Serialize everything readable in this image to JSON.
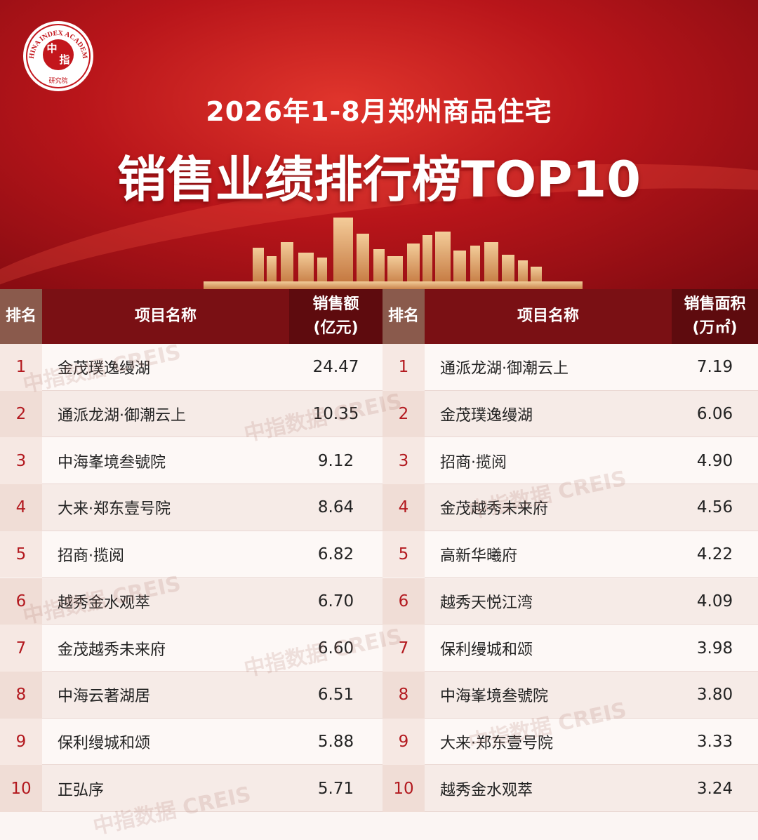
{
  "logo": {
    "ring_text": "CHINA INDEX ACADEMY",
    "mark_top": "中",
    "mark_bottom": "指",
    "sub": "研究院"
  },
  "header": {
    "subtitle": "2026年1-8月郑州商品住宅",
    "title": "销售业绩排行榜TOP10"
  },
  "watermark": "中指数据 CREIS",
  "tables": [
    {
      "columns": [
        "排名",
        "项目名称",
        [
          "销售额",
          "(亿元)"
        ]
      ],
      "rows": [
        [
          1,
          "金茂璞逸缦湖",
          "24.47"
        ],
        [
          2,
          "通派龙湖·御潮云上",
          "10.35"
        ],
        [
          3,
          "中海峯境叁號院",
          "9.12"
        ],
        [
          4,
          "大来·郑东壹号院",
          "8.64"
        ],
        [
          5,
          "招商·揽阅",
          "6.82"
        ],
        [
          6,
          "越秀金水观萃",
          "6.70"
        ],
        [
          7,
          "金茂越秀未来府",
          "6.60"
        ],
        [
          8,
          "中海云著湖居",
          "6.51"
        ],
        [
          9,
          "保利缦城和颂",
          "5.88"
        ],
        [
          10,
          "正弘序",
          "5.71"
        ]
      ]
    },
    {
      "columns": [
        "排名",
        "项目名称",
        [
          "销售面积",
          "(万㎡)"
        ]
      ],
      "rows": [
        [
          1,
          "通派龙湖·御潮云上",
          "7.19"
        ],
        [
          2,
          "金茂璞逸缦湖",
          "6.06"
        ],
        [
          3,
          "招商·揽阅",
          "4.90"
        ],
        [
          4,
          "金茂越秀未来府",
          "4.56"
        ],
        [
          5,
          "高新华曦府",
          "4.22"
        ],
        [
          6,
          "越秀天悦江湾",
          "4.09"
        ],
        [
          7,
          "保利缦城和颂",
          "3.98"
        ],
        [
          8,
          "中海峯境叁號院",
          "3.80"
        ],
        [
          9,
          "大来·郑东壹号院",
          "3.33"
        ],
        [
          10,
          "越秀金水观萃",
          "3.24"
        ]
      ]
    }
  ]
}
